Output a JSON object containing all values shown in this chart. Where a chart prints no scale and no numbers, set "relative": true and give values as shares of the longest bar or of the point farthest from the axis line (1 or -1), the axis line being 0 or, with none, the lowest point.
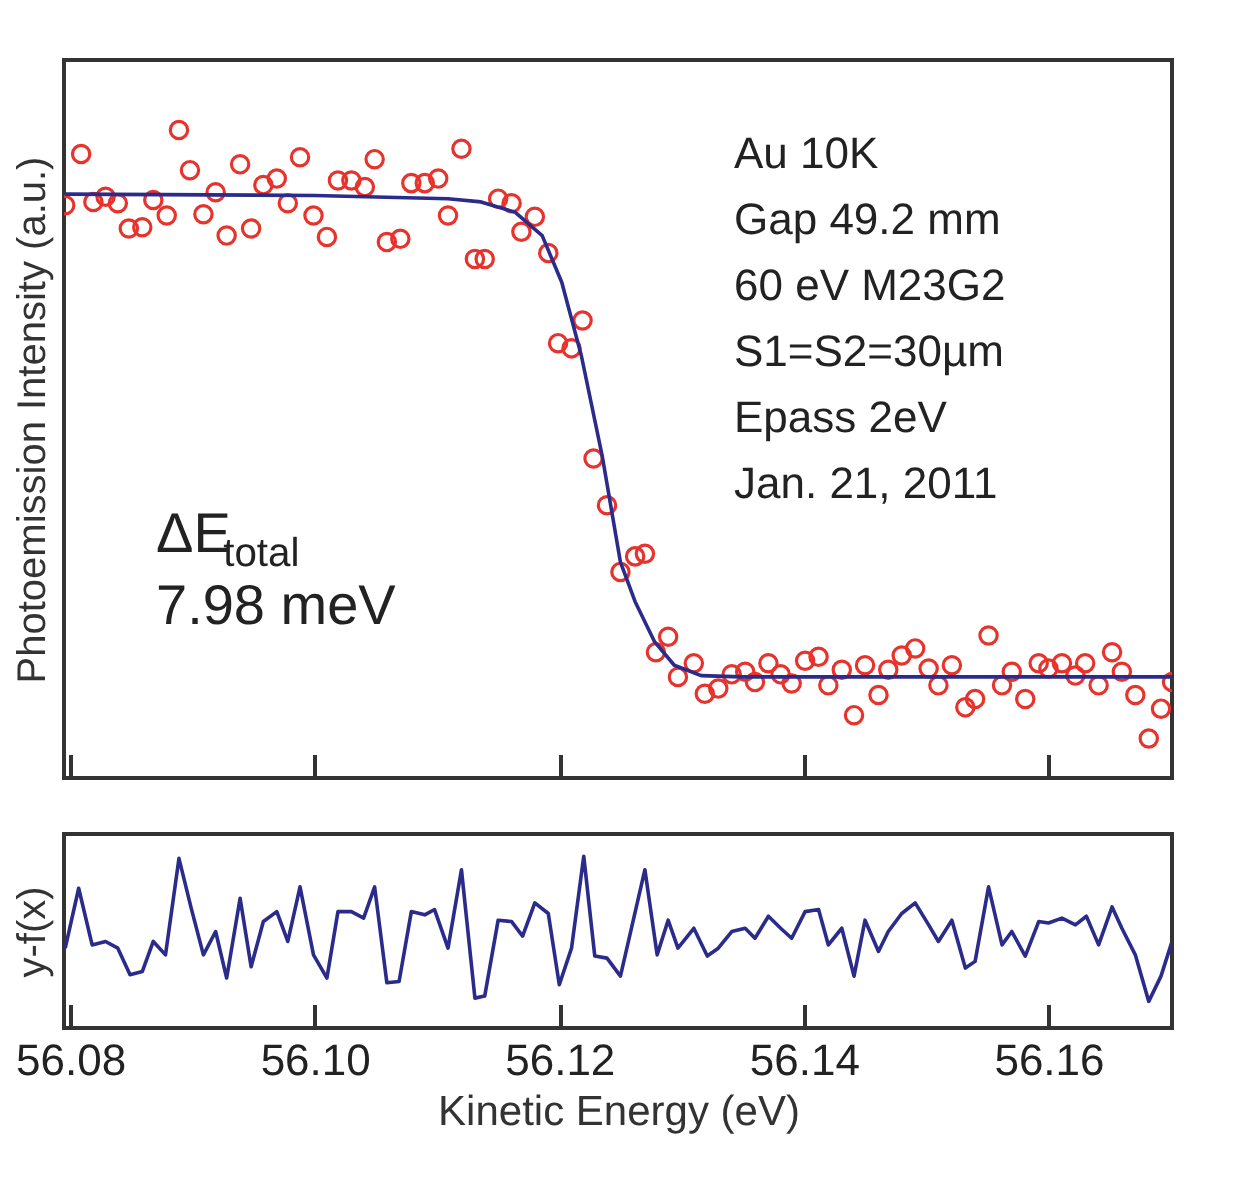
{
  "chart_data": [
    {
      "type": "scatter",
      "ylabel": "Photoemission Intensity (a.u.)",
      "relative": true,
      "tick_labels": false,
      "xlim": [
        56.0795,
        56.1701
      ],
      "xticks": [
        56.08,
        56.1,
        56.12,
        56.14,
        56.16
      ],
      "annotations": [
        "Au 10K",
        "Gap 49.2 mm",
        "60 eV M23G2",
        "S1=S2=30µm",
        "Epass 2eV",
        "Jan. 21, 2011",
        "ΔE$_{total}$",
        "7.98 meV"
      ],
      "series": [
        {
          "marker": "circle",
          "color": "#e8332d",
          "x": [
            56.0796,
            56.0809,
            56.0819,
            56.0829,
            56.0839,
            56.0848,
            56.0859,
            56.0868,
            56.0879,
            56.0889,
            56.0898,
            56.0909,
            56.0919,
            56.0928,
            56.0939,
            56.0948,
            56.0958,
            56.0969,
            56.0978,
            56.0988,
            56.0999,
            56.101,
            56.1019,
            56.103,
            56.1041,
            56.1049,
            56.1059,
            56.107,
            56.1079,
            56.109,
            56.1101,
            56.1109,
            56.112,
            56.1131,
            56.1139,
            56.115,
            56.1161,
            56.1169,
            56.118,
            56.1191,
            56.1199,
            56.121,
            56.1219,
            56.1228,
            56.1239,
            56.125,
            56.1262,
            56.127,
            56.1279,
            56.1289,
            56.1297,
            56.131,
            56.1319,
            56.133,
            56.1341,
            56.1352,
            56.136,
            56.1371,
            56.1381,
            56.139,
            56.1401,
            56.1412,
            56.142,
            56.1431,
            56.1441,
            56.145,
            56.1461,
            56.1469,
            56.148,
            56.1491,
            56.1502,
            56.151,
            56.1521,
            56.1532,
            56.154,
            56.1551,
            56.1562,
            56.157,
            56.1581,
            56.1592,
            56.16,
            56.1611,
            56.1622,
            56.163,
            56.1641,
            56.1652,
            56.166,
            56.1671,
            56.1682,
            56.1692,
            56.1701
          ],
          "values": [
            0.884,
            0.963,
            0.889,
            0.897,
            0.887,
            0.848,
            0.85,
            0.892,
            0.868,
            1,
            0.938,
            0.87,
            0.904,
            0.837,
            0.947,
            0.848,
            0.915,
            0.925,
            0.887,
            0.958,
            0.868,
            0.835,
            0.922,
            0.922,
            0.912,
            0.955,
            0.827,
            0.832,
            0.918,
            0.918,
            0.925,
            0.868,
            0.971,
            0.801,
            0.801,
            0.894,
            0.887,
            0.843,
            0.866,
            0.81,
            0.671,
            0.663,
            0.706,
            0.493,
            0.421,
            0.318,
            0.342,
            0.346,
            0.194,
            0.218,
            0.156,
            0.177,
            0.13,
            0.138,
            0.16,
            0.164,
            0.148,
            0.177,
            0.16,
            0.146,
            0.181,
            0.187,
            0.143,
            0.167,
            0.097,
            0.174,
            0.128,
            0.167,
            0.189,
            0.2,
            0.169,
            0.143,
            0.174,
            0.109,
            0.122,
            0.22,
            0.143,
            0.164,
            0.122,
            0.177,
            0.169,
            0.177,
            0.158,
            0.177,
            0.143,
            0.194,
            0.164,
            0.128,
            0.061,
            0.107,
            0.148
          ]
        },
        {
          "type": "line",
          "color": "#2b2b8c",
          "x": [
            56.0796,
            56.1,
            56.1109,
            56.1136,
            56.1164,
            56.1186,
            56.1202,
            56.1218,
            56.1235,
            56.125,
            56.1262,
            56.1278,
            56.1294,
            56.1316,
            56.1349,
            56.1701
          ],
          "values": [
            0.901,
            0.899,
            0.894,
            0.889,
            0.873,
            0.837,
            0.765,
            0.652,
            0.498,
            0.333,
            0.272,
            0.21,
            0.174,
            0.158,
            0.156,
            0.156
          ]
        }
      ]
    },
    {
      "type": "line",
      "ylabel": "y-f(x)",
      "xlabel": "Kinetic Energy (eV)",
      "relative": true,
      "tick_labels": "x",
      "xlim": [
        56.0795,
        56.1701
      ],
      "xticks": [
        56.08,
        {
          "value": 56.1,
          "label": "56.10"
        },
        56.12,
        56.14,
        56.16
      ],
      "x": [
        56.0796,
        56.0807,
        56.0818,
        56.0829,
        56.0839,
        56.0849,
        56.0859,
        56.0868,
        56.0878,
        56.0889,
        56.0899,
        56.0909,
        56.0919,
        56.0928,
        56.0939,
        56.0948,
        56.0958,
        56.0969,
        56.0978,
        56.0988,
        56.0999,
        56.101,
        56.1019,
        56.103,
        56.104,
        56.1049,
        56.1059,
        56.1069,
        56.1079,
        56.109,
        56.1098,
        56.1109,
        56.112,
        56.1131,
        56.1139,
        56.115,
        56.1161,
        56.117,
        56.118,
        56.1191,
        56.12,
        56.121,
        56.122,
        56.1229,
        56.1239,
        56.125,
        56.127,
        56.128,
        56.1289,
        56.1297,
        56.131,
        56.1321,
        56.133,
        56.1341,
        56.1352,
        56.136,
        56.1371,
        56.1381,
        56.139,
        56.1401,
        56.1412,
        56.142,
        56.1431,
        56.1441,
        56.145,
        56.1461,
        56.1469,
        56.148,
        56.1491,
        56.1502,
        56.151,
        56.1521,
        56.1532,
        56.154,
        56.1551,
        56.1562,
        56.157,
        56.1581,
        56.1592,
        56.16,
        56.1611,
        56.1622,
        56.1631,
        56.1641,
        56.1652,
        56.166,
        56.1671,
        56.1682,
        56.1692,
        56.1701
      ],
      "series": [
        {
          "color": "#2b2b8c",
          "values": [
            0.465,
            0.814,
            0.484,
            0.504,
            0.465,
            0.31,
            0.329,
            0.504,
            0.426,
            0.988,
            0.698,
            0.426,
            0.562,
            0.291,
            0.756,
            0.357,
            0.62,
            0.678,
            0.504,
            0.822,
            0.426,
            0.291,
            0.678,
            0.678,
            0.64,
            0.822,
            0.264,
            0.271,
            0.678,
            0.659,
            0.69,
            0.465,
            0.922,
            0.174,
            0.186,
            0.628,
            0.62,
            0.535,
            0.729,
            0.667,
            0.252,
            0.465,
            1,
            0.419,
            0.407,
            0.302,
            0.922,
            0.426,
            0.628,
            0.465,
            0.581,
            0.419,
            0.465,
            0.562,
            0.581,
            0.523,
            0.651,
            0.581,
            0.523,
            0.678,
            0.69,
            0.484,
            0.581,
            0.302,
            0.628,
            0.446,
            0.562,
            0.667,
            0.729,
            0.601,
            0.504,
            0.628,
            0.349,
            0.388,
            0.822,
            0.484,
            0.562,
            0.419,
            0.62,
            0.612,
            0.64,
            0.601,
            0.651,
            0.484,
            0.705,
            0.581,
            0.426,
            0.155,
            0.302,
            0.504
          ]
        }
      ]
    }
  ]
}
